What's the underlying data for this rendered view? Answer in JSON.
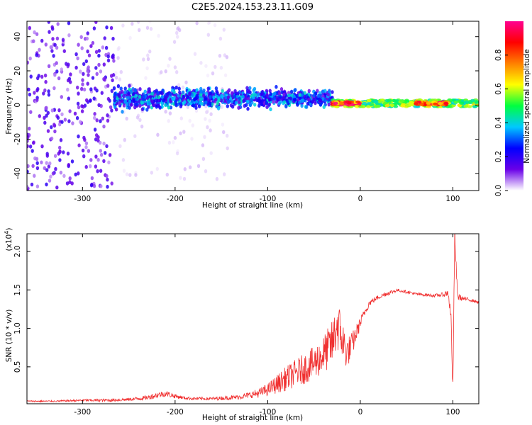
{
  "figure": {
    "title": "C2E5.2024.153.23.11.G09"
  },
  "chart_data": [
    {
      "type": "heatmap",
      "xlabel": "Height of straight line (km)",
      "ylabel": "Frequency (Hz)",
      "xlim": [
        -360,
        128
      ],
      "ylim": [
        -50,
        49
      ],
      "xticks": [
        -300,
        -200,
        -100,
        0,
        100
      ],
      "xtick_labels": [
        "-300",
        "-200",
        "-100",
        "0",
        "100"
      ],
      "yticks": [
        -40,
        -20,
        0,
        20,
        40
      ],
      "ytick_labels": [
        "-40",
        "-20",
        "0",
        "20",
        "40"
      ],
      "colorbar": {
        "label": "Normalized spectral amplitude",
        "range": [
          0,
          1
        ],
        "ticks": [
          0.0,
          0.2,
          0.4,
          0.6,
          0.8
        ],
        "tick_labels": [
          "0.0",
          "0.2",
          "0.4",
          "0.6",
          "0.8"
        ],
        "colors": [
          "#ffffff",
          "#6a00e8",
          "#0000ff",
          "#00c8ff",
          "#00ff40",
          "#ffff00",
          "#ff8000",
          "#ff0000",
          "#ff0090"
        ]
      },
      "regions": [
        {
          "x": [
            -360,
            -266
          ],
          "freq_center": 0,
          "freq_halfwidth": 49,
          "amplitude": 0.12,
          "pattern": "broadband noise"
        },
        {
          "x": [
            -266,
            -140
          ],
          "freq_center": 5,
          "freq_halfwidth": 49,
          "amplitude": 0.03,
          "pattern": "faint broadband noise"
        },
        {
          "x": [
            -266,
            -30
          ],
          "freq_center": 4,
          "freq_halfwidth": 9,
          "amplitude": 0.25,
          "pattern": "scattered signal band"
        },
        {
          "x": [
            -30,
            128
          ],
          "freq_center": 1,
          "freq_halfwidth": 2,
          "amplitude": 0.55,
          "pattern": "narrow carrier"
        },
        {
          "x": [
            -30,
            0
          ],
          "freq_center": 1,
          "freq_halfwidth": 1,
          "amplitude": 0.85,
          "pattern": "carrier peaks"
        },
        {
          "x": [
            60,
            95
          ],
          "freq_center": 1,
          "freq_halfwidth": 1,
          "amplitude": 0.85,
          "pattern": "carrier peaks"
        }
      ],
      "colors": {
        "noise": "#6a00e8",
        "signal": "#0000ff"
      }
    },
    {
      "type": "line",
      "xlabel": "Height of straight line (km)",
      "ylabel": "SNR (10 * v/v)",
      "y_multiplier": "(x10",
      "y_multiplier_exp": "4",
      "y_multiplier_close": ")",
      "xlim": [
        -360,
        128
      ],
      "ylim": [
        0.02,
        2.23
      ],
      "xticks": [
        -300,
        -200,
        -100,
        0,
        100
      ],
      "xtick_labels": [
        "-300",
        "-200",
        "-100",
        "0",
        "100"
      ],
      "yticks": [
        0.5,
        1.0,
        1.5,
        2.0
      ],
      "ytick_labels": [
        "0.5",
        "1.0",
        "1.5",
        "2.0"
      ],
      "color": "#f03030",
      "series": [
        {
          "x": [
            -360,
            -330,
            -300,
            -270,
            -250,
            -230,
            -220,
            -210,
            -200,
            -190,
            -180,
            -160,
            -140,
            -130,
            -120,
            -110,
            -100,
            -90,
            -80,
            -70,
            -60,
            -50,
            -40,
            -30,
            -25,
            -20,
            -15,
            -10,
            -5,
            0,
            5,
            10,
            20,
            30,
            40,
            50,
            60,
            70,
            80,
            90,
            95,
            98,
            100,
            102,
            105,
            110,
            120,
            128
          ],
          "y": [
            0.05,
            0.05,
            0.06,
            0.06,
            0.07,
            0.09,
            0.12,
            0.14,
            0.11,
            0.09,
            0.08,
            0.08,
            0.09,
            0.1,
            0.12,
            0.14,
            0.18,
            0.24,
            0.3,
            0.36,
            0.42,
            0.48,
            0.58,
            0.72,
            0.95,
            0.8,
            0.62,
            0.7,
            0.88,
            1.05,
            1.2,
            1.32,
            1.4,
            1.45,
            1.49,
            1.47,
            1.44,
            1.43,
            1.42,
            1.43,
            1.45,
            1.1,
            0.18,
            2.2,
            1.4,
            1.38,
            1.36,
            1.33
          ],
          "noise": [
            0.01,
            0.01,
            0.015,
            0.02,
            0.02,
            0.03,
            0.04,
            0.04,
            0.03,
            0.02,
            0.02,
            0.02,
            0.03,
            0.03,
            0.04,
            0.06,
            0.08,
            0.12,
            0.16,
            0.18,
            0.2,
            0.22,
            0.25,
            0.3,
            0.35,
            0.3,
            0.2,
            0.18,
            0.12,
            0.08,
            0.05,
            0.04,
            0.03,
            0.03,
            0.02,
            0.02,
            0.02,
            0.02,
            0.02,
            0.03,
            0.05,
            0.1,
            0.1,
            0.1,
            0.05,
            0.03,
            0.02,
            0.02
          ]
        }
      ]
    }
  ]
}
